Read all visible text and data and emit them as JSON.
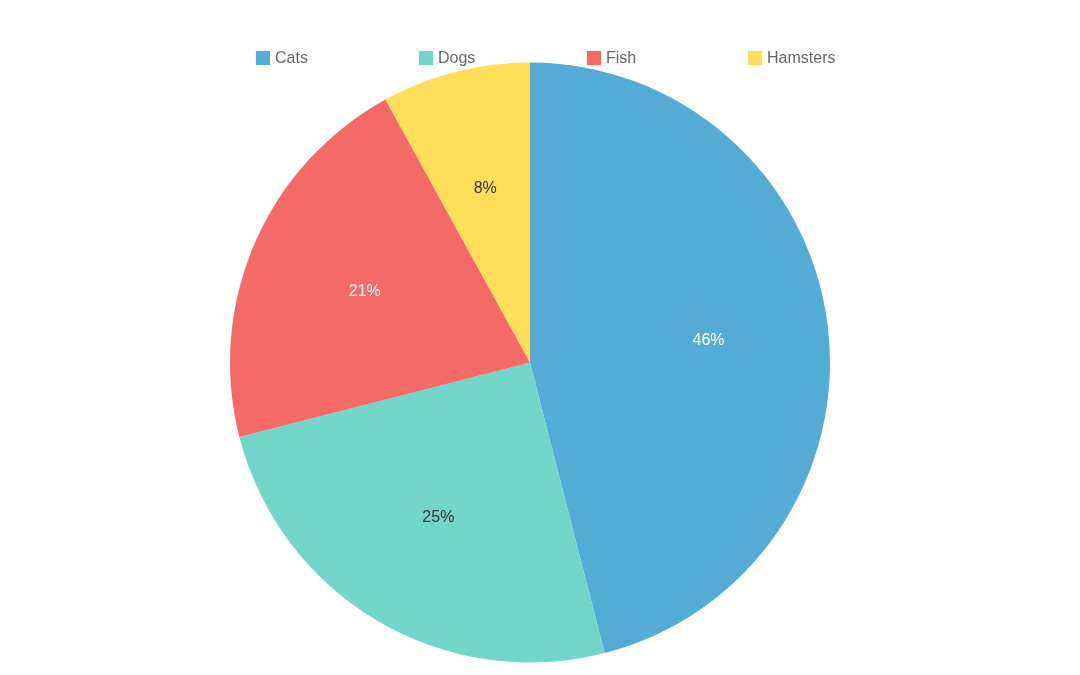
{
  "chart_data": {
    "type": "pie",
    "categories": [
      "Cats",
      "Dogs",
      "Fish",
      "Hamsters"
    ],
    "values": [
      46,
      25,
      21,
      8
    ],
    "colors": [
      "#54acd6",
      "#72d7c8",
      "#f46a67",
      "#ffde59"
    ],
    "value_labels": [
      "46%",
      "25%",
      "21%",
      "8%"
    ],
    "legend": "top"
  }
}
